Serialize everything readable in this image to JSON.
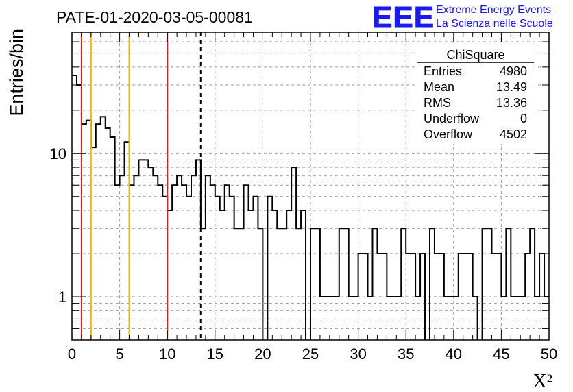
{
  "header": {
    "run_title": "PATE-01-2020-03-05-00081",
    "logo_text": "EEE",
    "logo_line1": "Extreme Energy Events",
    "logo_line2": "La Scienza nelle Scuole"
  },
  "stats": {
    "title": "ChiSquare",
    "rows": [
      {
        "label": "Entries",
        "value": "4980"
      },
      {
        "label": "Mean",
        "value": "13.49"
      },
      {
        "label": "RMS",
        "value": "13.36"
      },
      {
        "label": "Underflow",
        "value": "0"
      },
      {
        "label": "Overflow",
        "value": "4502"
      }
    ]
  },
  "colors": {
    "red_line": "#dd2222",
    "orange_line": "#f2b705",
    "histogram": "#000000",
    "logo_blue": "#1a1aee"
  },
  "chart_data": {
    "type": "histogram",
    "xlabel": "X²",
    "ylabel": "Entries/bin",
    "x_range": [
      0,
      50
    ],
    "y_range": [
      0.5,
      70
    ],
    "y_scale": "log",
    "grid": true,
    "bin_width": 0.5,
    "xticks": [
      0,
      5,
      10,
      15,
      20,
      25,
      30,
      35,
      40,
      45,
      50
    ],
    "yticks": [
      {
        "value": 1,
        "label": "1"
      },
      {
        "value": 10,
        "label": "10"
      }
    ],
    "values": [
      35,
      30,
      16,
      17,
      11,
      16,
      18,
      15,
      13,
      6,
      7,
      12,
      6,
      7,
      9,
      9,
      8,
      7,
      6,
      5,
      4,
      6,
      7,
      6,
      5,
      7,
      9,
      3,
      7,
      6,
      5,
      4,
      6,
      5,
      3,
      3,
      6,
      4,
      5,
      3,
      0,
      5,
      4,
      3,
      3,
      4,
      8,
      3,
      4,
      0,
      3,
      3,
      1,
      1,
      1,
      1,
      3,
      3,
      1,
      1,
      2,
      2,
      1,
      3,
      2,
      2,
      1,
      1,
      1,
      3,
      2,
      2,
      1,
      2,
      0,
      3,
      2,
      2,
      1,
      1,
      1,
      2,
      2,
      2,
      1,
      0,
      3,
      3,
      2,
      2,
      1,
      3,
      1,
      1,
      1,
      2,
      3,
      1,
      2,
      1
    ],
    "vertical_lines": [
      {
        "x": 1,
        "color": "red",
        "style": "solid"
      },
      {
        "x": 2,
        "color": "orange",
        "style": "solid"
      },
      {
        "x": 6,
        "color": "orange",
        "style": "solid"
      },
      {
        "x": 10,
        "color": "red",
        "style": "solid"
      },
      {
        "x": 13.49,
        "color": "black",
        "style": "dashed"
      }
    ]
  }
}
